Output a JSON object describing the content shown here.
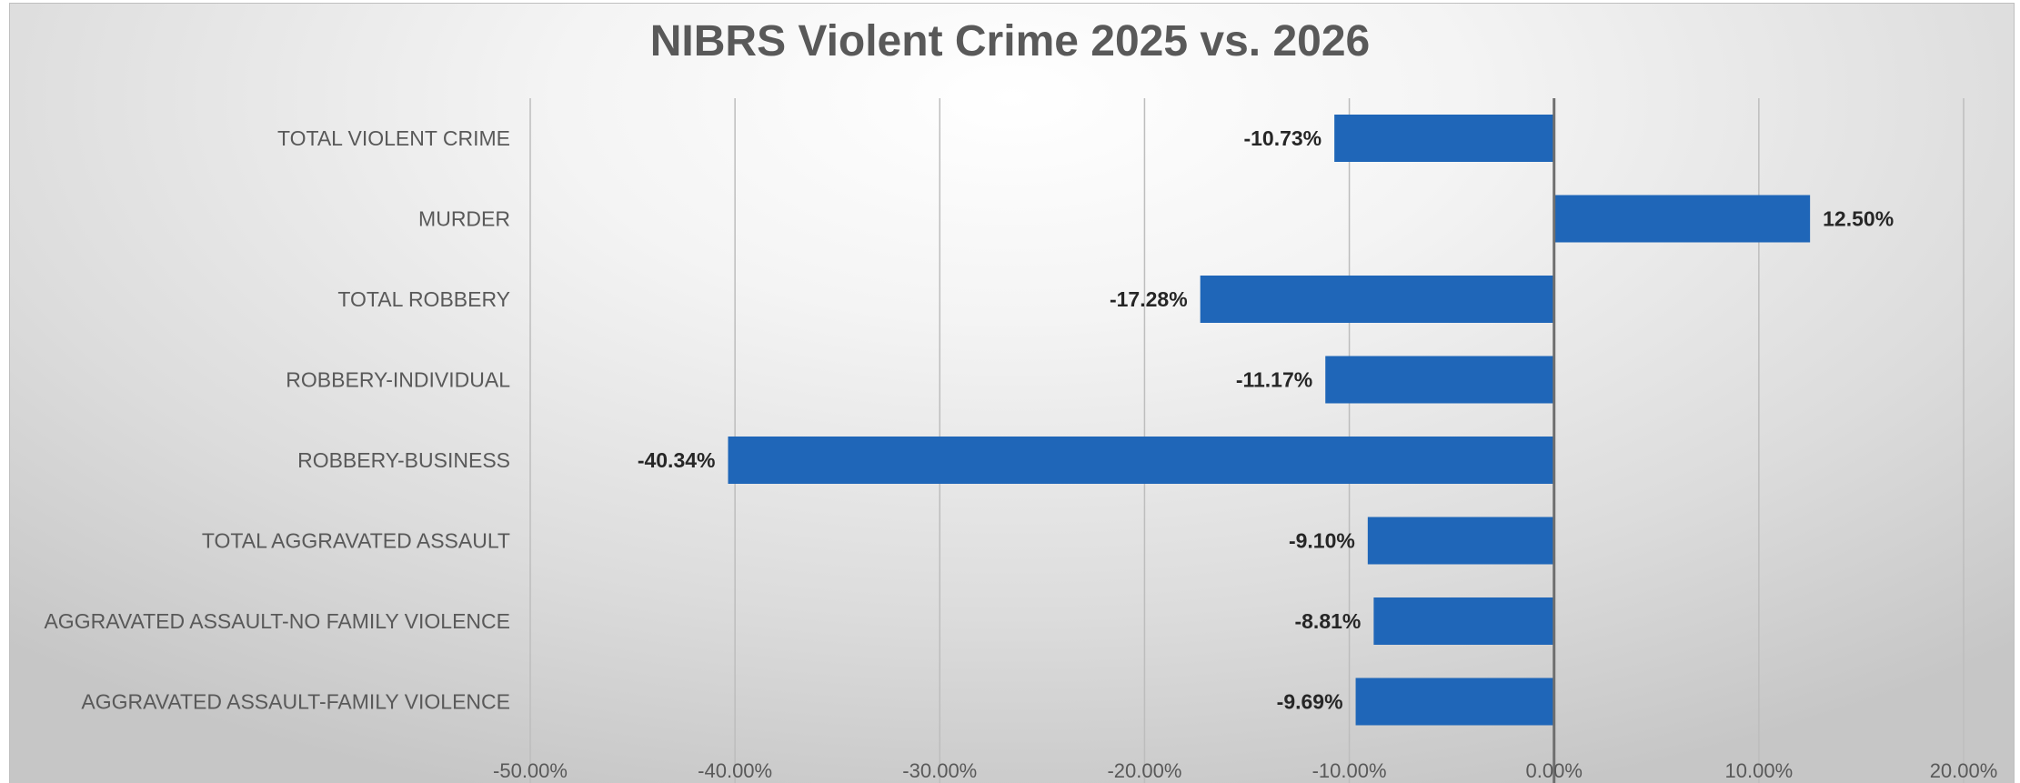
{
  "chart_data": {
    "type": "bar",
    "orientation": "horizontal",
    "title": "NIBRS Violent Crime 2025 vs. 2026",
    "categories": [
      "TOTAL VIOLENT CRIME",
      "MURDER",
      "TOTAL ROBBERY",
      "ROBBERY-INDIVIDUAL",
      "ROBBERY-BUSINESS",
      "TOTAL AGGRAVATED ASSAULT",
      "AGGRAVATED ASSAULT-NO FAMILY VIOLENCE",
      "AGGRAVATED ASSAULT-FAMILY VIOLENCE"
    ],
    "values": [
      -10.73,
      12.5,
      -17.28,
      -11.17,
      -40.34,
      -9.1,
      -8.81,
      -9.69
    ],
    "data_labels": [
      "-10.73%",
      "12.50%",
      "-17.28%",
      "-11.17%",
      "-40.34%",
      "-9.10%",
      "-8.81%",
      "-9.69%"
    ],
    "xlim": [
      -50,
      20
    ],
    "x_ticks": [
      -50,
      -40,
      -30,
      -20,
      -10,
      0,
      10,
      20
    ],
    "x_tick_labels": [
      "-50.00%",
      "-40.00%",
      "-30.00%",
      "-20.00%",
      "-10.00%",
      "0.00%",
      "10.00%",
      "20.00%"
    ],
    "xlabel": "",
    "ylabel": "",
    "grid": true,
    "legend": "none",
    "colors": {
      "bar": "#1f66b8",
      "gridline": "#bdbdbd",
      "zero_line": "#6f6f6f",
      "title": "#595959",
      "text": "#595959",
      "data_label": "#262626"
    }
  }
}
